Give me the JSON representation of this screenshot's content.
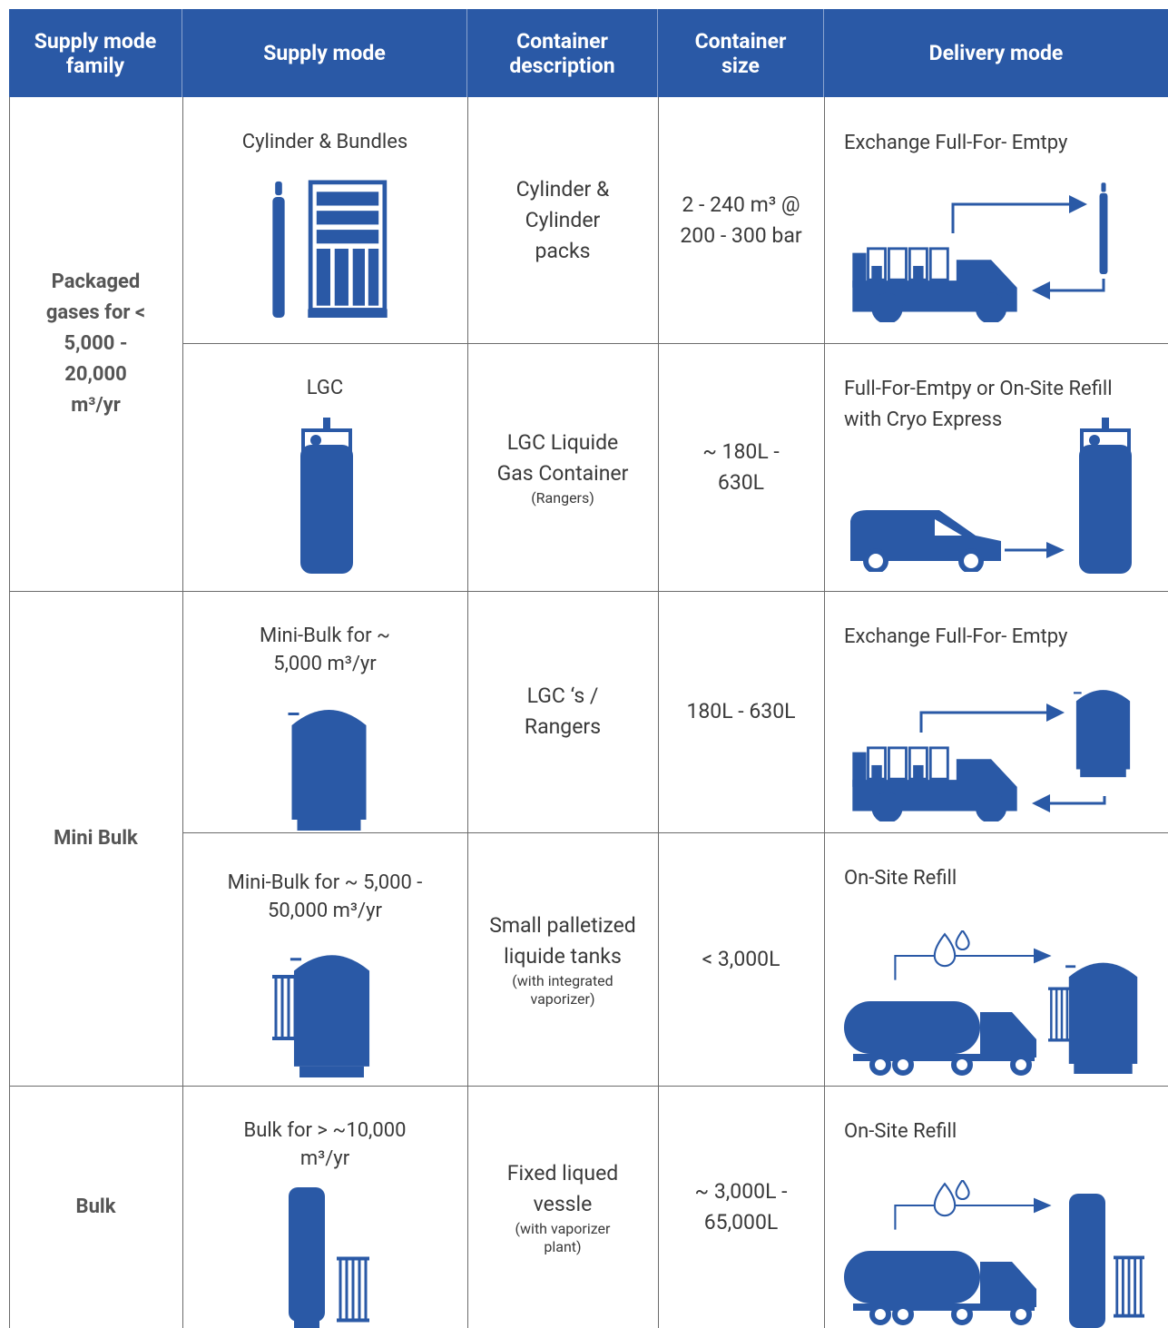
{
  "table": {
    "headers": [
      "Supply mode family",
      "Supply mode",
      "Container description",
      "Container size",
      "Delivery mode"
    ],
    "groups": [
      {
        "family": "Packaged gases for < 5,000 - 20,000 m³/yr",
        "rows": [
          {
            "supply_mode": "Cylinder & Bundles",
            "description": "Cylinder & Cylinder packs",
            "size": "2 - 240 m³ @ 200 - 300 bar",
            "delivery": "Exchange Full-For- Emtpy"
          },
          {
            "supply_mode": "LGC",
            "description": "LGC Liquide Gas Container",
            "note": "(Rangers)",
            "size": "~ 180L - 630L",
            "delivery": "Full-For-Emtpy or On-Site Refill with Cryo Express"
          }
        ]
      },
      {
        "family": "Mini Bulk",
        "rows": [
          {
            "supply_mode": "Mini-Bulk for ~ 5,000 m³/yr",
            "description": "LGC ‘s / Rangers",
            "size": "180L - 630L",
            "delivery": "Exchange Full-For- Emtpy"
          },
          {
            "supply_mode": "Mini-Bulk for ~ 5,000 - 50,000 m³/yr",
            "description": "Small palletized liquide tanks",
            "note": "(with integrated vaporizer)",
            "size": "< 3,000L",
            "delivery": "On-Site Refill"
          }
        ]
      },
      {
        "family": "Bulk",
        "rows": [
          {
            "supply_mode": "Bulk for > ~10,000 m³/yr",
            "description": "Fixed liqued vessle",
            "note": "(with vaporizer plant)",
            "size": "~ 3,000L - 65,000L",
            "delivery": "On-Site Refill"
          }
        ]
      }
    ]
  }
}
